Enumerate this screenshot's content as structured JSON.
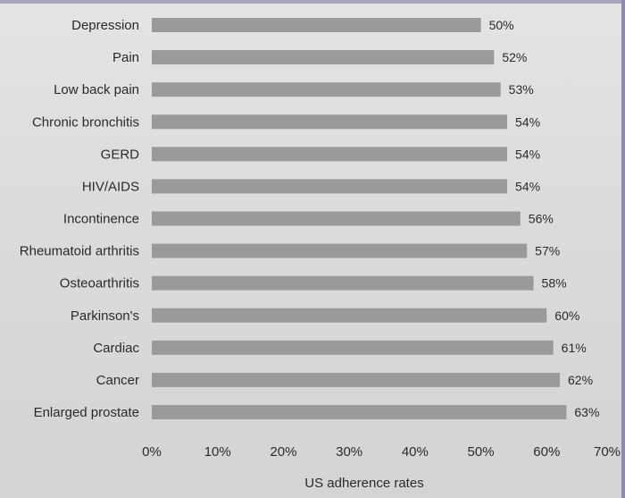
{
  "chart_data": {
    "type": "bar",
    "orientation": "horizontal",
    "categories": [
      "Depression",
      "Pain",
      "Low back pain",
      "Chronic bronchitis",
      "GERD",
      "HIV/AIDS",
      "Incontinence",
      "Rheumatoid arthritis",
      "Osteoarthritis",
      "Parkinson's",
      "Cardiac",
      "Cancer",
      "Enlarged prostate"
    ],
    "values": [
      50,
      52,
      53,
      54,
      54,
      54,
      56,
      57,
      58,
      60,
      61,
      62,
      63
    ],
    "value_labels": [
      "50%",
      "52%",
      "53%",
      "54%",
      "54%",
      "54%",
      "56%",
      "57%",
      "58%",
      "60%",
      "61%",
      "62%",
      "63%"
    ],
    "xlabel": "US adherence rates",
    "ylabel": "",
    "xlim": [
      0,
      70
    ],
    "x_ticks": [
      "0%",
      "10%",
      "20%",
      "30%",
      "40%",
      "50%",
      "60%",
      "70%"
    ],
    "grid": false,
    "legend": "none",
    "bar_color": "#9a9a9c"
  }
}
